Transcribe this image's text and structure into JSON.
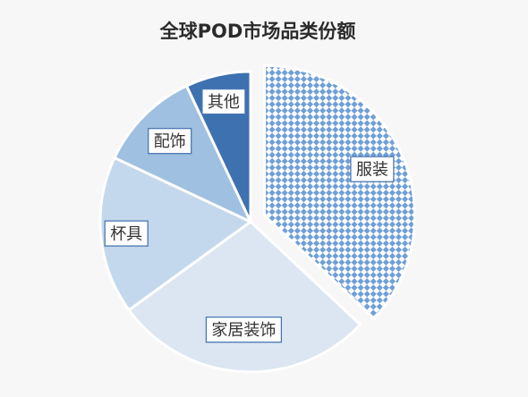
{
  "chart_data": {
    "type": "pie",
    "title": "全球POD市场品类份额",
    "unit": "%",
    "slices": [
      {
        "label": "服装",
        "value": 37,
        "color": "#6f9fd6",
        "pattern": "checker",
        "exploded": true
      },
      {
        "label": "家居装饰",
        "value": 28,
        "color": "#dbe6f2",
        "pattern": "none",
        "exploded": false
      },
      {
        "label": "杯具",
        "value": 17,
        "color": "#c3d8ec",
        "pattern": "none",
        "exploded": false
      },
      {
        "label": "配饰",
        "value": 11,
        "color": "#9fc0e0",
        "pattern": "none",
        "exploded": false
      },
      {
        "label": "其他",
        "value": 7,
        "color": "#3e71b0",
        "pattern": "none",
        "exploded": false
      }
    ],
    "start_angle_deg": 0,
    "direction": "clockwise",
    "legend": "none",
    "label_border_color": "#4a78b2"
  }
}
